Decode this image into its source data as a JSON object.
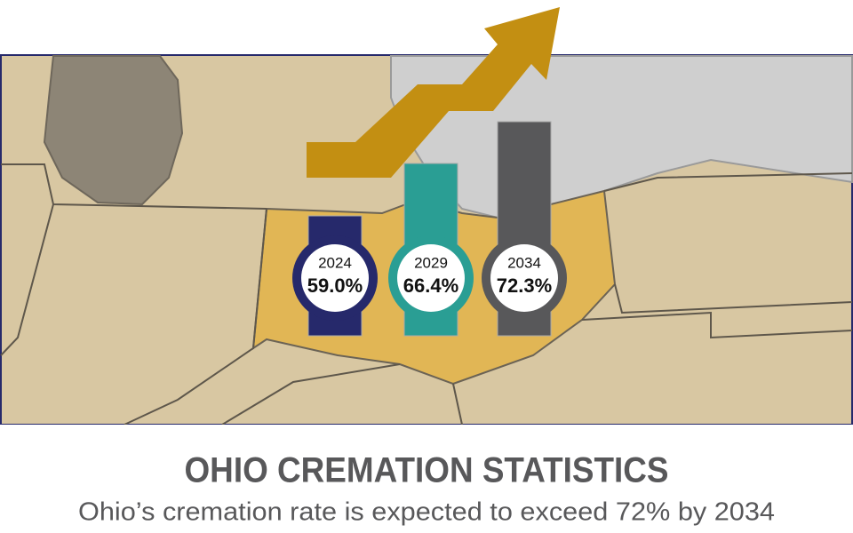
{
  "chart_data": {
    "type": "bar",
    "title": "OHIO CREMATION STATISTICS",
    "subtitle": "Ohio’s cremation rate is expected to exceed 72% by 2034",
    "categories": [
      "2024",
      "2029",
      "2034"
    ],
    "values": [
      59.0,
      66.4,
      72.3
    ],
    "value_labels": [
      "59.0%",
      "66.4%",
      "72.3%"
    ],
    "colors": [
      "#26296b",
      "#2a9e94",
      "#58585a"
    ]
  }
}
